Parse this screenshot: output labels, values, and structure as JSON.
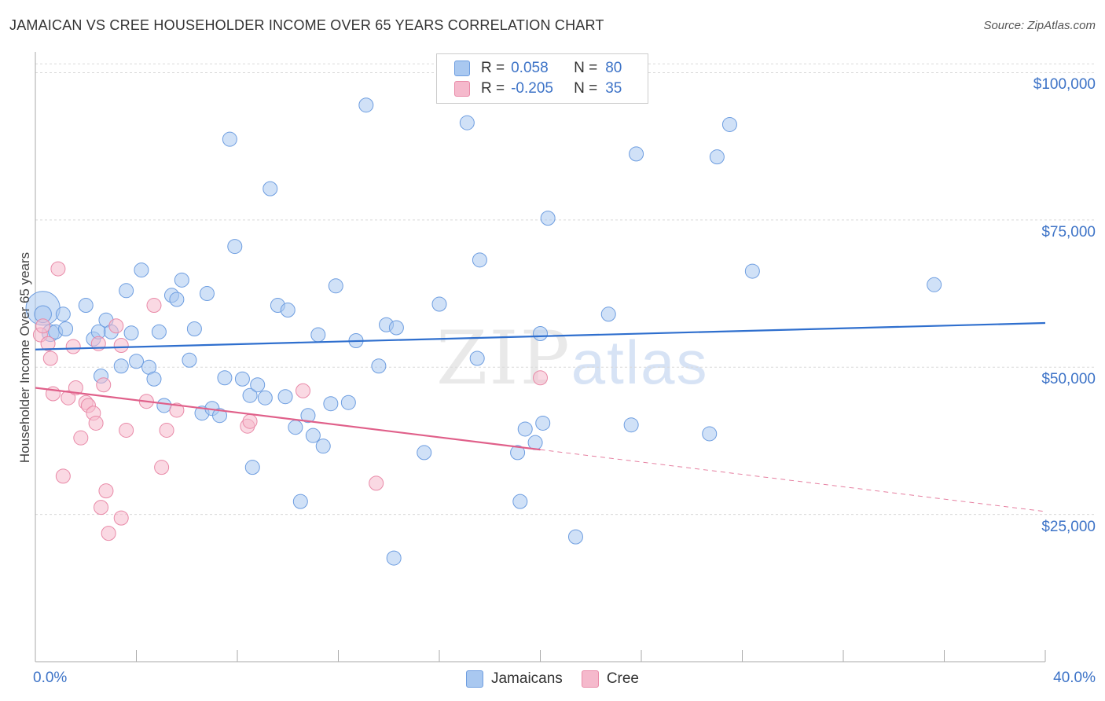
{
  "title": "JAMAICAN VS CREE HOUSEHOLDER INCOME OVER 65 YEARS CORRELATION CHART",
  "source": "Source: ZipAtlas.com",
  "watermark": {
    "zip": "ZIP",
    "atlas": "atlas"
  },
  "legend": {
    "rows": [
      {
        "r_label": "R =",
        "r_value": "0.058",
        "n_label": "N =",
        "n_value": "80",
        "color": "#a9c8f0"
      },
      {
        "r_label": "R =",
        "r_value": "-0.205",
        "n_label": "N =",
        "n_value": "35",
        "color": "#f5b9cc"
      }
    ]
  },
  "chart_data": {
    "type": "scatter",
    "title": "JAMAICAN VS CREE HOUSEHOLDER INCOME OVER 65 YEARS CORRELATION CHART",
    "xlabel": "",
    "ylabel": "Householder Income Over 65 years",
    "xlim": [
      0,
      40
    ],
    "ylim": [
      0,
      103000
    ],
    "x_tick_labels": [
      {
        "value": 0,
        "label": "0.0%"
      },
      {
        "value": 40,
        "label": "40.0%"
      }
    ],
    "y_tick_labels": [
      {
        "value": 25000,
        "label": "$25,000"
      },
      {
        "value": 50000,
        "label": "$50,000"
      },
      {
        "value": 75000,
        "label": "$75,000"
      },
      {
        "value": 100000,
        "label": "$100,000"
      }
    ],
    "grid": true,
    "legend_position": "top-center",
    "series": [
      {
        "name": "Jamaicans",
        "color": "#6d9de0",
        "fill": "#a9c8f0",
        "trend": {
          "x": [
            0,
            40
          ],
          "y": [
            53000,
            57500
          ],
          "color": "#2f6fce"
        },
        "points": [
          [
            0.3,
            60000,
            2.4
          ],
          [
            0.3,
            59000,
            1.2
          ],
          [
            0.6,
            55800,
            1.2
          ],
          [
            0.8,
            56000,
            1.0
          ],
          [
            1.2,
            56500,
            1.0
          ],
          [
            1.1,
            59000,
            1.0
          ],
          [
            2.0,
            60500,
            1.0
          ],
          [
            2.3,
            54800,
            1.0
          ],
          [
            2.5,
            56000,
            1.0
          ],
          [
            2.6,
            48500,
            1.0
          ],
          [
            2.8,
            58000,
            1.0
          ],
          [
            3.0,
            56000,
            1.0
          ],
          [
            3.4,
            50200,
            1.0
          ],
          [
            3.6,
            63000,
            1.0
          ],
          [
            3.8,
            55800,
            1.0
          ],
          [
            4.0,
            51000,
            1.0
          ],
          [
            4.2,
            66500,
            1.0
          ],
          [
            4.5,
            50000,
            1.0
          ],
          [
            4.7,
            48000,
            1.0
          ],
          [
            4.9,
            56000,
            1.0
          ],
          [
            5.1,
            43500,
            1.0
          ],
          [
            5.4,
            62200,
            1.0
          ],
          [
            5.6,
            61500,
            1.0
          ],
          [
            5.8,
            64800,
            1.0
          ],
          [
            6.1,
            51200,
            1.0
          ],
          [
            6.3,
            56500,
            1.0
          ],
          [
            6.6,
            42200,
            1.0
          ],
          [
            6.8,
            62500,
            1.0
          ],
          [
            7.0,
            43000,
            1.0
          ],
          [
            7.3,
            41800,
            1.0
          ],
          [
            7.5,
            48200,
            1.0
          ],
          [
            7.7,
            88700,
            1.0
          ],
          [
            7.9,
            70500,
            1.0
          ],
          [
            8.2,
            48000,
            1.0
          ],
          [
            8.5,
            45200,
            1.0
          ],
          [
            8.6,
            33000,
            1.0
          ],
          [
            8.8,
            47000,
            1.0
          ],
          [
            9.1,
            44800,
            1.0
          ],
          [
            9.3,
            80300,
            1.0
          ],
          [
            9.6,
            60500,
            1.0
          ],
          [
            9.9,
            45000,
            1.0
          ],
          [
            10.0,
            59700,
            1.0
          ],
          [
            10.3,
            39800,
            1.0
          ],
          [
            10.5,
            27200,
            1.0
          ],
          [
            10.8,
            41800,
            1.0
          ],
          [
            11.0,
            38400,
            1.0
          ],
          [
            11.2,
            55500,
            1.0
          ],
          [
            11.4,
            36600,
            1.0
          ],
          [
            11.7,
            43800,
            1.0
          ],
          [
            11.9,
            63800,
            1.0
          ],
          [
            12.4,
            44000,
            1.0
          ],
          [
            12.7,
            54500,
            1.0
          ],
          [
            13.1,
            94500,
            1.0
          ],
          [
            13.6,
            50200,
            1.0
          ],
          [
            13.9,
            57200,
            1.0
          ],
          [
            14.2,
            17600,
            1.0
          ],
          [
            14.3,
            56700,
            1.0
          ],
          [
            15.4,
            35500,
            1.0
          ],
          [
            16.0,
            60700,
            1.0
          ],
          [
            17.1,
            91500,
            1.0
          ],
          [
            17.5,
            51500,
            1.0
          ],
          [
            17.6,
            68200,
            1.0
          ],
          [
            19.1,
            35500,
            1.0
          ],
          [
            19.2,
            27200,
            1.0
          ],
          [
            19.4,
            39500,
            1.0
          ],
          [
            19.8,
            37200,
            1.0
          ],
          [
            20.0,
            55700,
            1.0
          ],
          [
            20.1,
            40500,
            1.0
          ],
          [
            20.3,
            75300,
            1.0
          ],
          [
            21.4,
            21200,
            1.0
          ],
          [
            22.7,
            59000,
            1.0
          ],
          [
            23.6,
            40200,
            1.0
          ],
          [
            23.8,
            86200,
            1.0
          ],
          [
            26.7,
            38700,
            1.0
          ],
          [
            27.0,
            85700,
            1.0
          ],
          [
            27.5,
            91200,
            1.0
          ],
          [
            28.4,
            66300,
            1.0
          ],
          [
            35.6,
            64000,
            1.0
          ]
        ]
      },
      {
        "name": "Cree",
        "color": "#e98aa8",
        "fill": "#f5b9cc",
        "trend": {
          "x": [
            0,
            20
          ],
          "y": [
            46500,
            36000
          ],
          "color": "#e0608a"
        },
        "trend_extension": {
          "x": [
            20,
            40
          ],
          "y": [
            36000,
            25500
          ]
        },
        "points": [
          [
            0.2,
            55500,
            1.0
          ],
          [
            0.3,
            57000,
            1.0
          ],
          [
            0.5,
            54000,
            1.0
          ],
          [
            0.6,
            51500,
            1.0
          ],
          [
            0.7,
            45500,
            1.0
          ],
          [
            0.9,
            66700,
            1.0
          ],
          [
            1.1,
            31500,
            1.0
          ],
          [
            1.3,
            44800,
            1.0
          ],
          [
            1.5,
            53500,
            1.0
          ],
          [
            1.6,
            46500,
            1.0
          ],
          [
            1.8,
            38000,
            1.0
          ],
          [
            2.0,
            44000,
            1.0
          ],
          [
            2.1,
            43500,
            1.0
          ],
          [
            2.3,
            42200,
            1.0
          ],
          [
            2.4,
            40500,
            1.0
          ],
          [
            2.5,
            54000,
            1.0
          ],
          [
            2.6,
            26200,
            1.0
          ],
          [
            2.7,
            47000,
            1.0
          ],
          [
            2.8,
            29000,
            1.0
          ],
          [
            2.9,
            21800,
            1.0
          ],
          [
            3.2,
            57000,
            1.0
          ],
          [
            3.4,
            53700,
            1.0
          ],
          [
            3.4,
            24400,
            1.0
          ],
          [
            3.6,
            39300,
            1.0
          ],
          [
            4.4,
            44200,
            1.0
          ],
          [
            4.7,
            60500,
            1.0
          ],
          [
            5.0,
            33000,
            1.0
          ],
          [
            5.2,
            39300,
            1.0
          ],
          [
            5.6,
            42700,
            1.0
          ],
          [
            8.4,
            40000,
            1.0
          ],
          [
            8.5,
            40800,
            1.0
          ],
          [
            10.6,
            46000,
            1.0
          ],
          [
            13.5,
            30300,
            1.0
          ],
          [
            20.0,
            48200,
            1.0
          ]
        ]
      }
    ]
  }
}
